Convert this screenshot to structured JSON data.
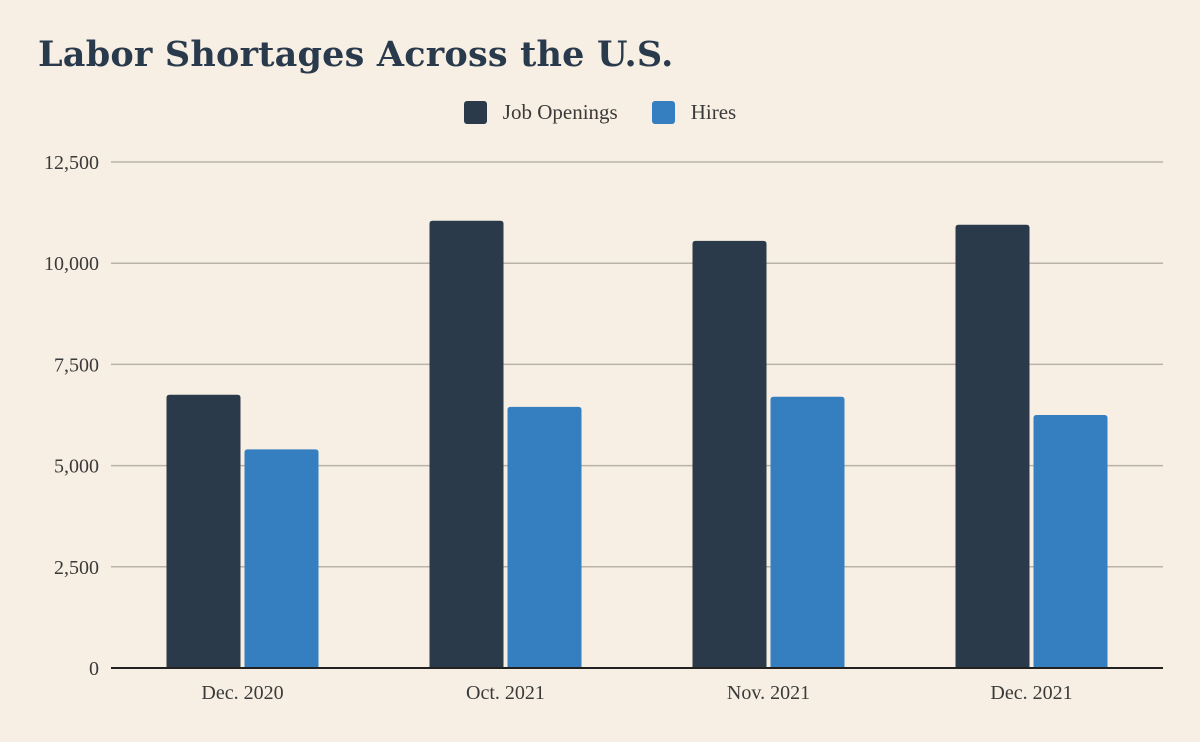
{
  "title": "Labor Shortages Across the U.S.",
  "colors": {
    "background": "#f7efe3",
    "job_openings": "#2a3a4b",
    "hires": "#357fc1",
    "grid": "#b9b3aa",
    "axis": "#222222"
  },
  "chart_data": {
    "type": "bar",
    "title": "Labor Shortages Across the U.S.",
    "xlabel": "",
    "ylabel": "",
    "categories": [
      "Dec. 2020",
      "Oct. 2021",
      "Nov. 2021",
      "Dec. 2021"
    ],
    "series": [
      {
        "name": "Job Openings",
        "color": "#2a3a4b",
        "values": [
          6750,
          11050,
          10550,
          10950
        ]
      },
      {
        "name": "Hires",
        "color": "#357fc1",
        "values": [
          5400,
          6450,
          6700,
          6250
        ]
      }
    ],
    "ylim": [
      0,
      12500
    ],
    "yticks": [
      0,
      2500,
      5000,
      7500,
      10000,
      12500
    ],
    "ytick_labels": [
      "0",
      "2,500",
      "5,000",
      "7,500",
      "10,000",
      "12,500"
    ],
    "grid": true,
    "legend_position": "top-center"
  }
}
